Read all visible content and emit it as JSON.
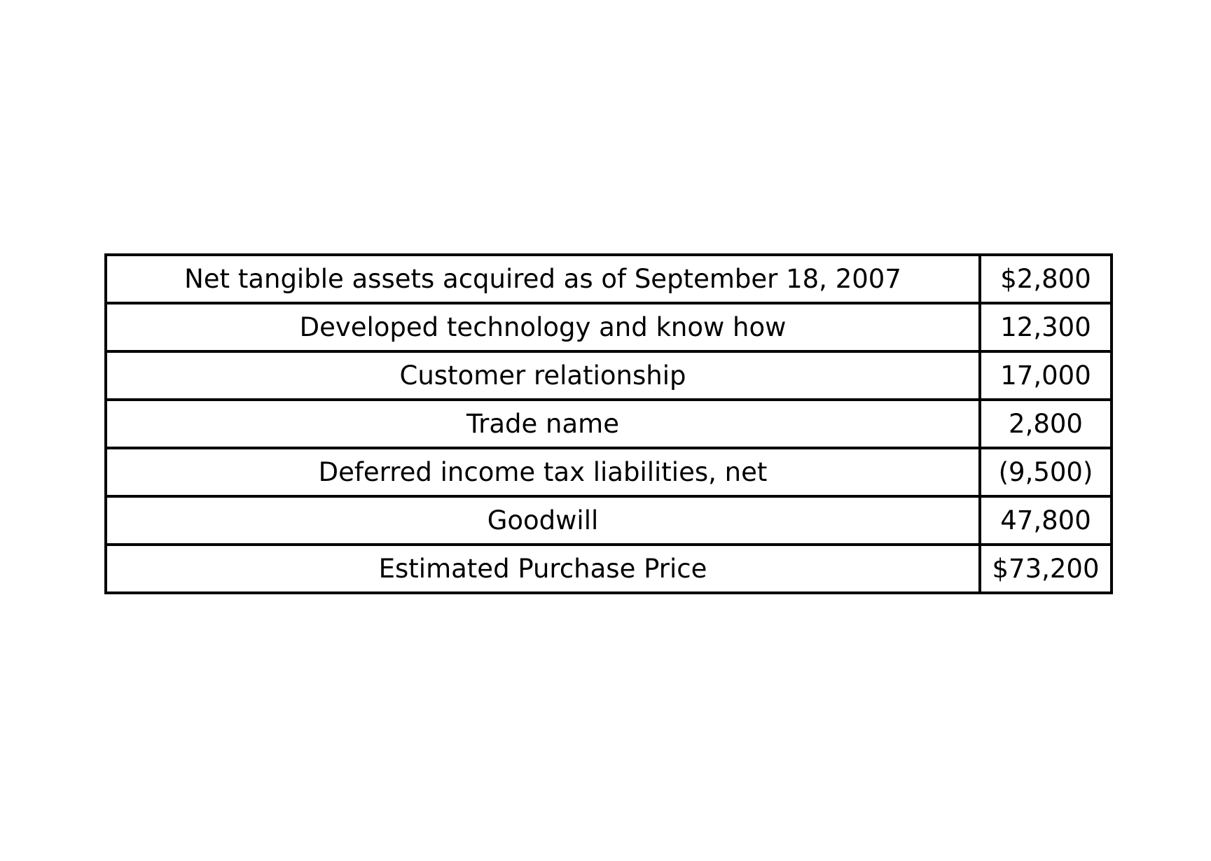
{
  "table": {
    "rows": [
      {
        "label": "Net tangible assets acquired as of September 18, 2007",
        "value": "$2,800"
      },
      {
        "label": "Developed technology and know how",
        "value": "12,300"
      },
      {
        "label": "Customer relationship",
        "value": "17,000"
      },
      {
        "label": "Trade name",
        "value": "2,800"
      },
      {
        "label": "Deferred income tax liabilities, net",
        "value": "(9,500)"
      },
      {
        "label": "Goodwill",
        "value": "47,800"
      },
      {
        "label": "Estimated Purchase Price",
        "value": "$73,200"
      }
    ]
  }
}
